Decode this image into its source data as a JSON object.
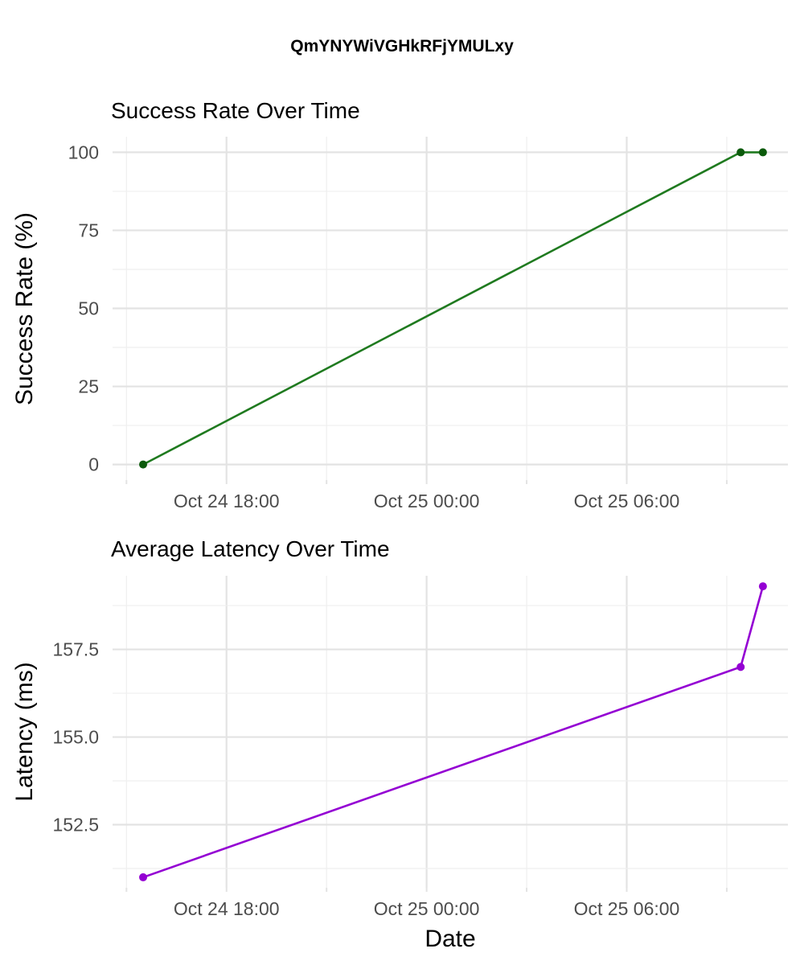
{
  "figure": {
    "title": "QmYNYWiVGHkRFjYMULxy",
    "xlabel": "Date"
  },
  "chart_data": [
    {
      "type": "line",
      "title": "Success Rate Over Time",
      "xlabel": "",
      "ylabel": "Success Rate (%)",
      "x": [
        "2024-10-24 15:30",
        "2024-10-25 09:25",
        "2024-10-25 10:05"
      ],
      "series": [
        {
          "values": [
            0,
            100,
            100
          ],
          "color": "#1f7a1f",
          "point_color": "#0b5a0b"
        }
      ],
      "xlim": [
        "2024-10-24 14:35",
        "2024-10-25 10:50"
      ],
      "ylim": [
        -5,
        105
      ],
      "x_ticks": [
        {
          "value": "2024-10-24 18:00",
          "label": "Oct 24 18:00"
        },
        {
          "value": "2024-10-25 00:00",
          "label": "Oct 25 00:00"
        },
        {
          "value": "2024-10-25 06:00",
          "label": "Oct 25 06:00"
        }
      ],
      "y_ticks": [
        {
          "value": 0,
          "label": "0"
        },
        {
          "value": 25,
          "label": "25"
        },
        {
          "value": 50,
          "label": "50"
        },
        {
          "value": 75,
          "label": "75"
        },
        {
          "value": 100,
          "label": "100"
        }
      ],
      "grid": true,
      "legend": "none"
    },
    {
      "type": "line",
      "title": "Average Latency Over Time",
      "xlabel": "Date",
      "ylabel": "Latency (ms)",
      "x": [
        "2024-10-24 15:30",
        "2024-10-25 09:25",
        "2024-10-25 10:05"
      ],
      "series": [
        {
          "values": [
            151,
            157,
            159.3
          ],
          "color": "#9400d3",
          "point_color": "#9400d3"
        }
      ],
      "xlim": [
        "2024-10-24 14:35",
        "2024-10-25 10:50"
      ],
      "ylim": [
        150.7,
        159.6
      ],
      "x_ticks": [
        {
          "value": "2024-10-24 18:00",
          "label": "Oct 24 18:00"
        },
        {
          "value": "2024-10-25 00:00",
          "label": "Oct 25 00:00"
        },
        {
          "value": "2024-10-25 06:00",
          "label": "Oct 25 06:00"
        }
      ],
      "y_ticks": [
        {
          "value": 152.5,
          "label": "152.5"
        },
        {
          "value": 155.0,
          "label": "155.0"
        },
        {
          "value": 157.5,
          "label": "157.5"
        }
      ],
      "grid": true,
      "legend": "none"
    }
  ]
}
